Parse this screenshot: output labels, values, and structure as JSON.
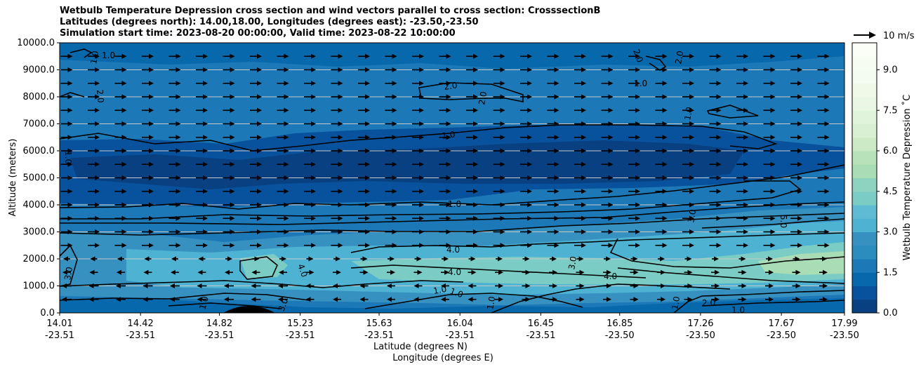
{
  "chart_data": {
    "type": "contour",
    "title_lines": [
      "Wetbulb Temperature Depression cross section and wind vectors parallel to cross section: CrosssectionB",
      "Latitudes (degrees north): 14.00,18.00, Longitudes (degrees east): -23.50,-23.50",
      "Simulation start time: 2023-08-20 00:00:00, Valid time: 2023-08-22 10:00:00"
    ],
    "xlabel_lines": [
      "Latitude (degrees N)",
      "Longitude (degrees E)"
    ],
    "ylabel": "Altitude (meters)",
    "ylim": [
      0,
      10000
    ],
    "y_ticks": [
      "0.0",
      "1000.0",
      "2000.0",
      "3000.0",
      "4000.0",
      "5000.0",
      "6000.0",
      "7000.0",
      "8000.0",
      "9000.0",
      "10000.0"
    ],
    "x_ticks": [
      {
        "lat": "14.01",
        "lon": "-23.51"
      },
      {
        "lat": "14.42",
        "lon": "-23.51"
      },
      {
        "lat": "14.82",
        "lon": "-23.51"
      },
      {
        "lat": "15.23",
        "lon": "-23.51"
      },
      {
        "lat": "15.63",
        "lon": "-23.51"
      },
      {
        "lat": "16.04",
        "lon": "-23.51"
      },
      {
        "lat": "16.45",
        "lon": "-23.51"
      },
      {
        "lat": "16.85",
        "lon": "-23.50"
      },
      {
        "lat": "17.26",
        "lon": "-23.50"
      },
      {
        "lat": "17.67",
        "lon": "-23.50"
      },
      {
        "lat": "17.99",
        "lon": "-23.50"
      }
    ],
    "x_range": [
      14.01,
      17.99
    ],
    "grid": "horizontal",
    "colorbar": {
      "label": "Wetbulb Temperature Depression ˚C",
      "range": [
        0,
        10
      ],
      "ticks": [
        "0.0",
        "1.5",
        "3.0",
        "4.5",
        "6.0",
        "7.5",
        "9.0"
      ],
      "levels": 20,
      "colors": [
        "#084081",
        "#08519c",
        "#0868ac",
        "#1c78b6",
        "#2b8cbe",
        "#3690c0",
        "#4eb3d3",
        "#5fbbd4",
        "#7bccc4",
        "#8ed3c0",
        "#a8ddb5",
        "#b8e2b8",
        "#ccebc5",
        "#d9f0d3",
        "#e0f3db",
        "#eaf7e4",
        "#f0f9e8",
        "#f4fbef",
        "#f7fcf0",
        "#fbfdf7"
      ]
    },
    "quiver_key": {
      "label": "10 m/s",
      "speed": 10
    },
    "wind_rows": [
      {
        "alt": 500,
        "dir": "mixed"
      },
      {
        "alt": 1000,
        "dir": "mixed"
      },
      {
        "alt": 1500,
        "dir": "mixed"
      },
      {
        "alt": 2000,
        "dir": "mixed"
      },
      {
        "alt": 2500,
        "dir": "east"
      },
      {
        "alt": 3000,
        "dir": "east"
      },
      {
        "alt": 3500,
        "dir": "east"
      },
      {
        "alt": 4000,
        "dir": "east"
      },
      {
        "alt": 4500,
        "dir": "east"
      },
      {
        "alt": 5000,
        "dir": "east"
      },
      {
        "alt": 5500,
        "dir": "east"
      },
      {
        "alt": 6000,
        "dir": "east"
      },
      {
        "alt": 6500,
        "dir": "east"
      },
      {
        "alt": 7000,
        "dir": "east"
      },
      {
        "alt": 7500,
        "dir": "east"
      },
      {
        "alt": 8000,
        "dir": "east"
      },
      {
        "alt": 8500,
        "dir": "east"
      },
      {
        "alt": 9000,
        "dir": "east"
      },
      {
        "alt": 9500,
        "dir": "east"
      }
    ],
    "contour_labels": [
      "1.0",
      "1.0",
      "2.0",
      "2.0",
      "2.0",
      "2.0",
      "1.0",
      "2.0",
      "1.0",
      "1.0",
      "1.0",
      "1.0",
      "4.0",
      "4.0",
      "4.0",
      "4.0",
      "3.0",
      "3.0",
      "5.0",
      "3.0",
      "1.0",
      "1.0",
      "2.0",
      "1.0",
      "1.0",
      "1.0",
      "3.0",
      "1.0"
    ]
  }
}
